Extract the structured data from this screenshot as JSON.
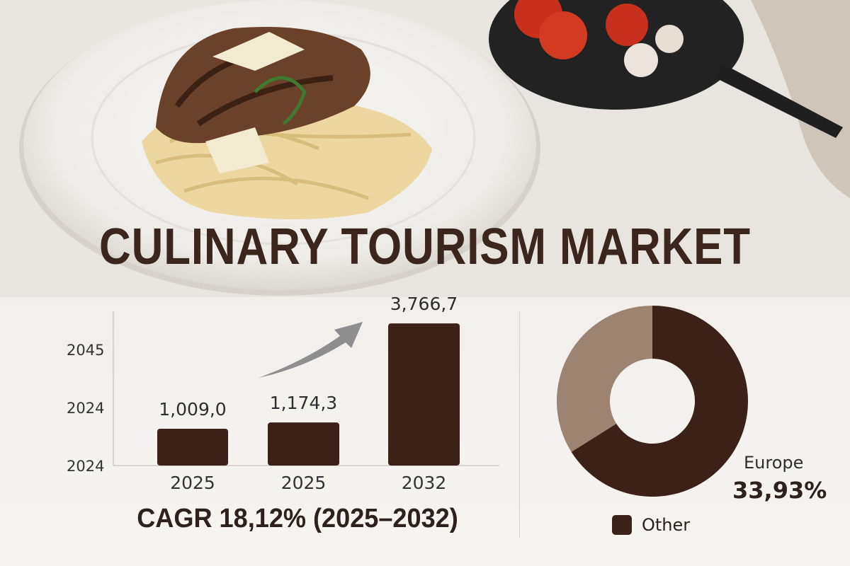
{
  "title": "CULINARY TOURISM MARKET",
  "colors": {
    "dark": "#3b2117",
    "light": "#9c8372",
    "arrow": "#8e8e8e"
  },
  "chart_data": [
    {
      "type": "bar",
      "categories": [
        "2025",
        "2025",
        "2032"
      ],
      "values": [
        1009.0,
        1174.3,
        3766.7
      ],
      "value_labels": [
        "1,009,0",
        "1,174,3",
        "3,766,7"
      ],
      "y_tick_labels": [
        "2024",
        "2024",
        "2045"
      ],
      "annotation": "CAGR 18,12% (2025–2032)",
      "trend_arrow": true,
      "color": "#3b2117"
    },
    {
      "type": "pie",
      "donut": true,
      "slices": [
        {
          "name": "Europe",
          "value": 33.93,
          "label": "33,93%",
          "color": "#9c8372"
        },
        {
          "name": "Other",
          "value": 66.07,
          "color": "#3b2117"
        }
      ],
      "legend": [
        "Other"
      ],
      "legend_placement": "bottom"
    }
  ]
}
